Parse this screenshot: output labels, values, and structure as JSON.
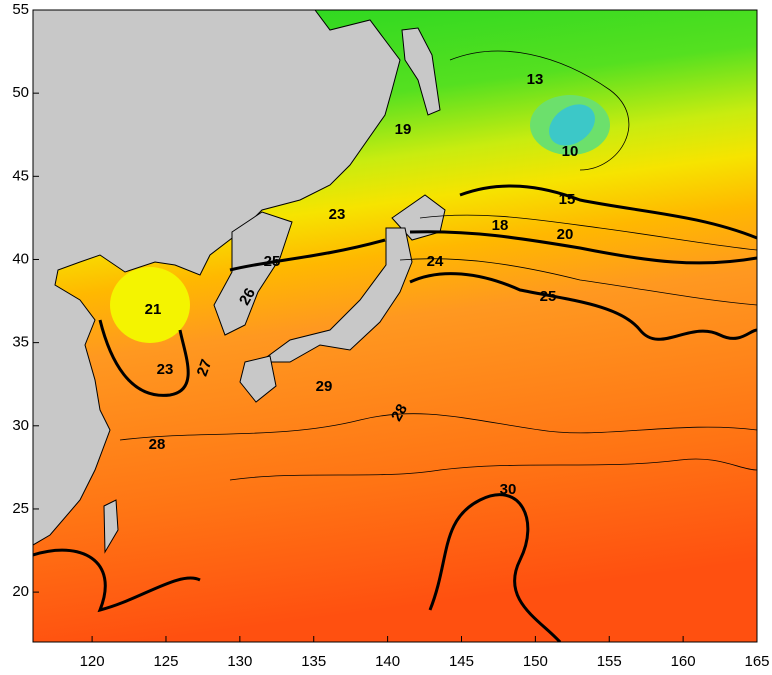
{
  "map": {
    "xlim": [
      116,
      165
    ],
    "ylim": [
      17,
      55
    ],
    "xticks": [
      120,
      125,
      130,
      135,
      140,
      145,
      150,
      155,
      160,
      165
    ],
    "yticks": [
      20,
      25,
      30,
      35,
      40,
      45,
      50,
      55
    ],
    "contour_labels": [
      "13",
      "10",
      "19",
      "15",
      "23",
      "18",
      "20",
      "25",
      "24",
      "25",
      "21",
      "23",
      "27",
      "26",
      "29",
      "28",
      "28",
      "30"
    ]
  }
}
